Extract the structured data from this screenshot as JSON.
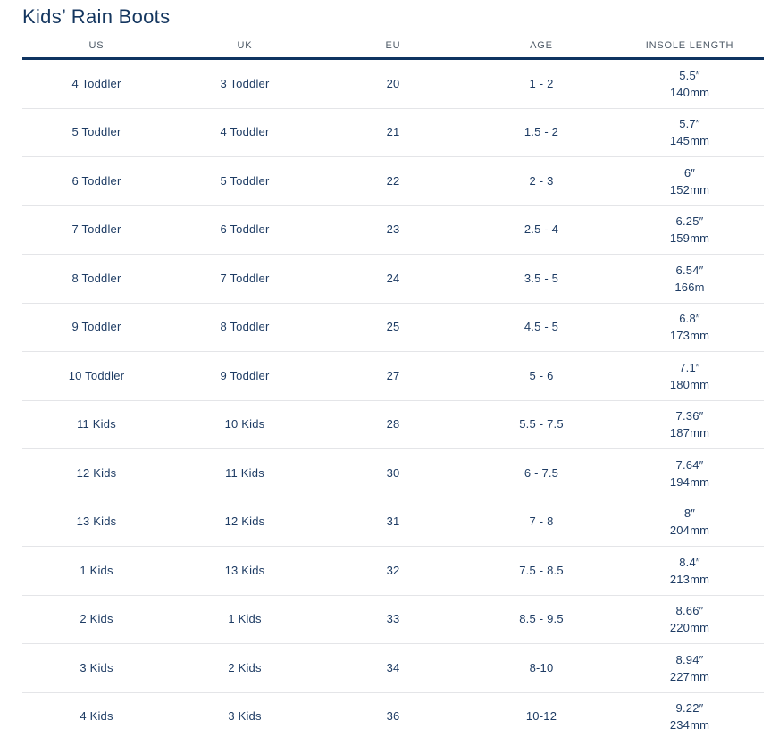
{
  "page": {
    "title": "Kids’ Rain Boots"
  },
  "colors": {
    "accent_navy": "#0f3461",
    "cell_text": "#1e3c64",
    "header_text": "#4d5966",
    "row_divider": "#e4e5e8"
  },
  "table": {
    "columns": [
      "US",
      "UK",
      "EU",
      "AGE",
      "INSOLE LENGTH"
    ],
    "rows": [
      {
        "us": "4 Toddler",
        "uk": "3 Toddler",
        "eu": "20",
        "age": "1 - 2",
        "insole_in": "5.5″",
        "insole_mm": "140mm"
      },
      {
        "us": "5 Toddler",
        "uk": "4 Toddler",
        "eu": "21",
        "age": "1.5 - 2",
        "insole_in": "5.7″",
        "insole_mm": "145mm"
      },
      {
        "us": "6 Toddler",
        "uk": "5 Toddler",
        "eu": "22",
        "age": "2 - 3",
        "insole_in": "6″",
        "insole_mm": "152mm"
      },
      {
        "us": "7 Toddler",
        "uk": "6 Toddler",
        "eu": "23",
        "age": "2.5 - 4",
        "insole_in": "6.25″",
        "insole_mm": "159mm"
      },
      {
        "us": "8 Toddler",
        "uk": "7 Toddler",
        "eu": "24",
        "age": "3.5 - 5",
        "insole_in": "6.54″",
        "insole_mm": "166m"
      },
      {
        "us": "9 Toddler",
        "uk": "8 Toddler",
        "eu": "25",
        "age": "4.5 - 5",
        "insole_in": "6.8″",
        "insole_mm": "173mm"
      },
      {
        "us": "10 Toddler",
        "uk": "9 Toddler",
        "eu": "27",
        "age": "5 - 6",
        "insole_in": "7.1″",
        "insole_mm": "180mm"
      },
      {
        "us": "11 Kids",
        "uk": "10 Kids",
        "eu": "28",
        "age": "5.5 - 7.5",
        "insole_in": "7.36″",
        "insole_mm": "187mm"
      },
      {
        "us": "12 Kids",
        "uk": "11 Kids",
        "eu": "30",
        "age": "6 - 7.5",
        "insole_in": "7.64″",
        "insole_mm": "194mm"
      },
      {
        "us": "13 Kids",
        "uk": "12 Kids",
        "eu": "31",
        "age": "7 - 8",
        "insole_in": "8″",
        "insole_mm": "204mm"
      },
      {
        "us": "1 Kids",
        "uk": "13 Kids",
        "eu": "32",
        "age": "7.5 - 8.5",
        "insole_in": "8.4″",
        "insole_mm": "213mm"
      },
      {
        "us": "2 Kids",
        "uk": "1 Kids",
        "eu": "33",
        "age": "8.5 - 9.5",
        "insole_in": "8.66″",
        "insole_mm": "220mm"
      },
      {
        "us": "3 Kids",
        "uk": "2 Kids",
        "eu": "34",
        "age": "8-10",
        "insole_in": "8.94″",
        "insole_mm": "227mm"
      },
      {
        "us": "4 Kids",
        "uk": "3 Kids",
        "eu": "36",
        "age": "10-12",
        "insole_in": "9.22″",
        "insole_mm": "234mm"
      }
    ]
  }
}
